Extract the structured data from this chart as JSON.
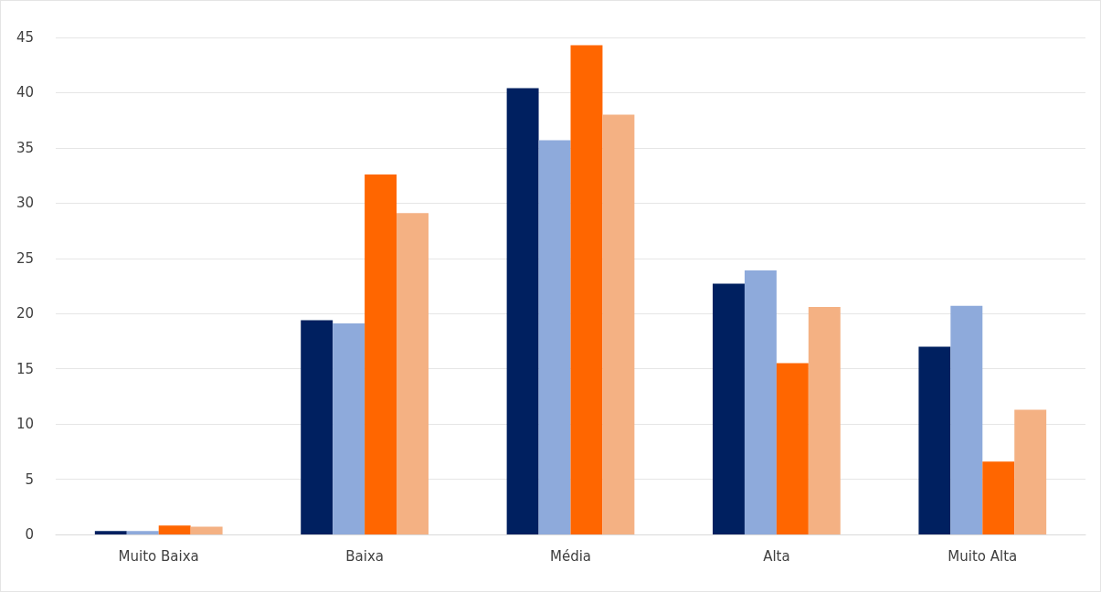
{
  "chart_data": {
    "type": "bar",
    "categories": [
      "Muito Baixa",
      "Baixa",
      "Média",
      "Alta",
      "Muito Alta"
    ],
    "series": [
      {
        "color": "#002060",
        "values": [
          0.3,
          19.4,
          40.4,
          22.7,
          17.0
        ]
      },
      {
        "color": "#8eaadb",
        "values": [
          0.3,
          19.1,
          35.7,
          23.9,
          20.7
        ]
      },
      {
        "color": "#ff6600",
        "values": [
          0.8,
          32.6,
          44.3,
          15.5,
          6.6
        ]
      },
      {
        "color": "#f4b183",
        "values": [
          0.7,
          29.1,
          38.0,
          20.6,
          11.3
        ]
      }
    ],
    "ylim": [
      0,
      45
    ],
    "yticks": [
      0,
      5,
      10,
      15,
      20,
      25,
      30,
      35,
      40,
      45
    ],
    "grid": "y"
  }
}
